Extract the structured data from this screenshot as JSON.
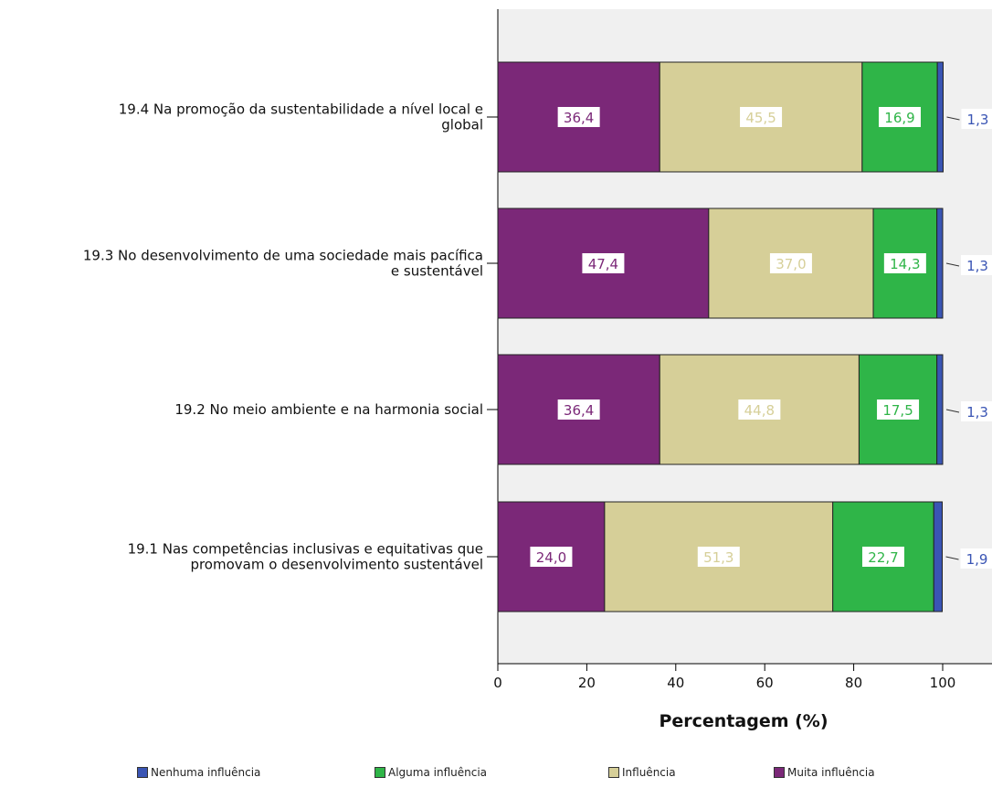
{
  "chart_data": {
    "type": "bar",
    "orientation": "horizontal",
    "stacked": true,
    "xlabel": "Percentagem (%)",
    "ylabel": "",
    "xlim": [
      0,
      100
    ],
    "xticks": [
      0,
      20,
      40,
      60,
      80,
      100
    ],
    "grid": false,
    "legend_position": "bottom",
    "categories": [
      [
        "19.4 Na promoção da sustentabilidade a nível local e",
        "global"
      ],
      [
        "19.3 No desenvolvimento de uma sociedade mais pacífica",
        "e sustentável"
      ],
      [
        "19.2 No meio ambiente e na harmonia social"
      ],
      [
        "19.1 Nas competências inclusivas e equitativas que",
        "promovam o desenvolvimento sustentável"
      ]
    ],
    "series": [
      {
        "name": "Muita influência",
        "color": "#7b2878",
        "values": [
          36.4,
          47.4,
          36.4,
          24.0
        ],
        "labels": [
          "36,4",
          "47,4",
          "36,4",
          "24,0"
        ]
      },
      {
        "name": "Influência",
        "color": "#d6cf98",
        "values": [
          45.5,
          37.0,
          44.8,
          51.3
        ],
        "labels": [
          "45,5",
          "37,0",
          "44,8",
          "51,3"
        ]
      },
      {
        "name": "Alguma influência",
        "color": "#2fb548",
        "values": [
          16.9,
          14.3,
          17.5,
          22.7
        ],
        "labels": [
          "16,9",
          "14,3",
          "17,5",
          "22,7"
        ]
      },
      {
        "name": "Nenhuma influência",
        "color": "#3a55b4",
        "values": [
          1.3,
          1.3,
          1.3,
          1.9
        ],
        "labels": [
          "1,3",
          "1,3",
          "1,3",
          "1,9"
        ]
      }
    ],
    "legend_order": [
      "Nenhuma influência",
      "Alguma influência",
      "Influência",
      "Muita influência"
    ]
  }
}
